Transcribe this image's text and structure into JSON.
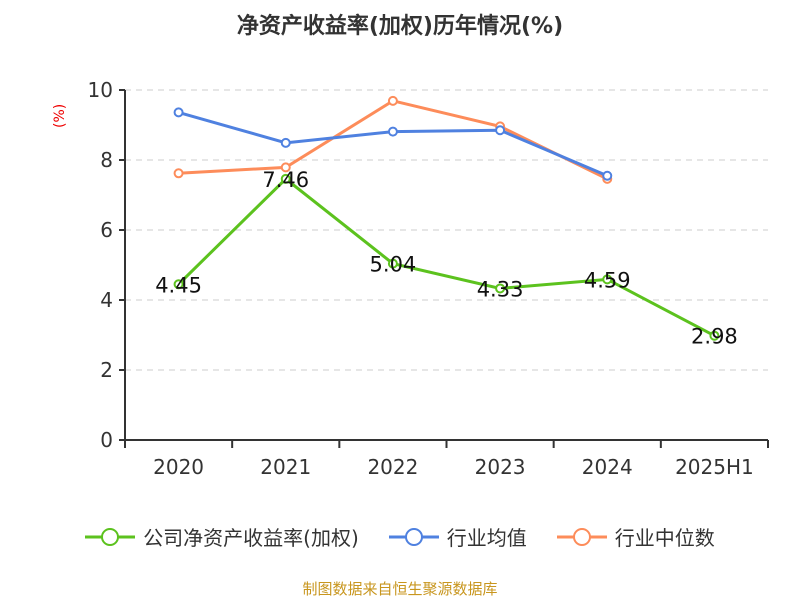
{
  "chart_data": {
    "type": "line",
    "title": "净资产收益率(加权)历年情况(%)",
    "ylabel": "(%)",
    "categories": [
      "2020",
      "2021",
      "2022",
      "2023",
      "2024",
      "2025H1"
    ],
    "ylim": [
      0,
      10
    ],
    "yticks": [
      0,
      2,
      4,
      6,
      8,
      10
    ],
    "grid": true,
    "legend_position": "bottom",
    "series": [
      {
        "name": "公司净资产收益率(加权)",
        "color": "#5cc21e",
        "values": [
          4.45,
          7.46,
          5.04,
          4.33,
          4.59,
          2.98
        ],
        "labels": [
          "4.45",
          "7.46",
          "5.04",
          "4.33",
          "4.59",
          "2.98"
        ]
      },
      {
        "name": "行业均值",
        "color": "#4f81e0",
        "values": [
          9.36,
          8.49,
          8.81,
          8.85,
          7.55,
          null
        ]
      },
      {
        "name": "行业中位数",
        "color": "#fd8c5a",
        "values": [
          7.62,
          7.79,
          9.69,
          8.96,
          7.46,
          null
        ]
      }
    ]
  },
  "source": "制图数据来自恒生聚源数据库"
}
